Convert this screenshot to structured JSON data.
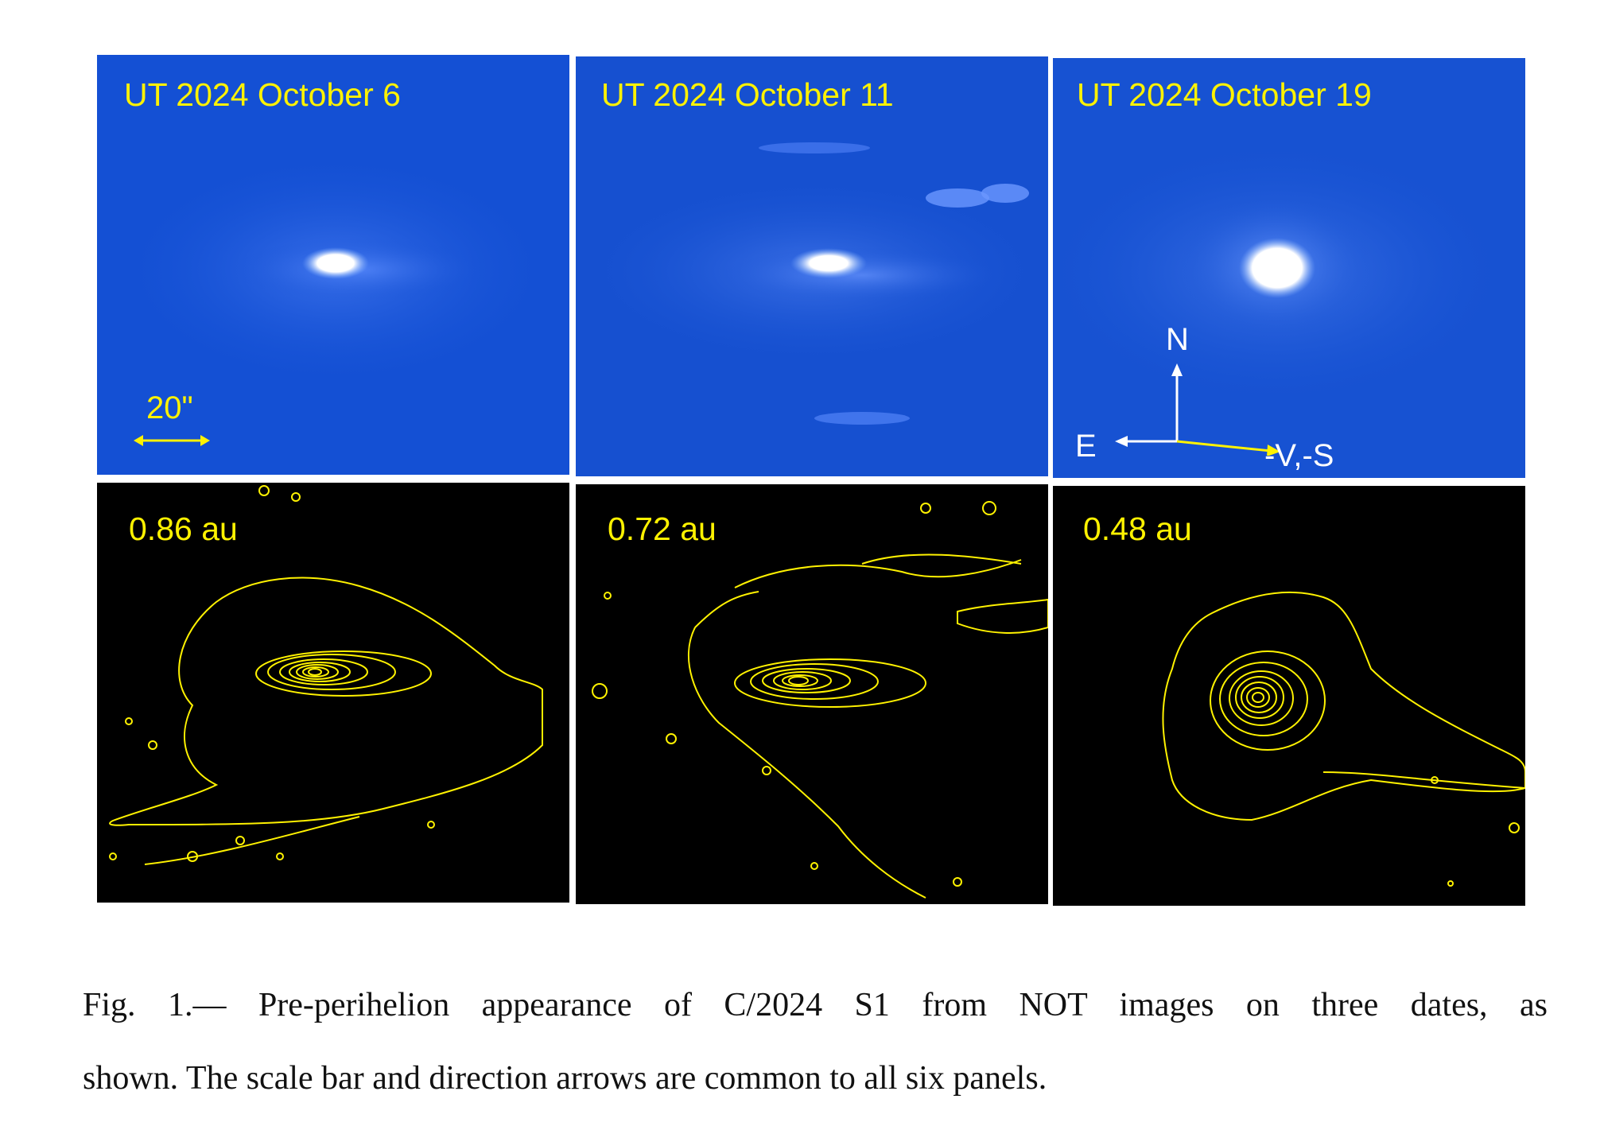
{
  "figure": {
    "top_row": [
      {
        "label": "UT 2024 October 6",
        "color": "#1450d4"
      },
      {
        "label": "UT 2024 October 11",
        "color": "#1450d4"
      },
      {
        "label": "UT 2024 October 19",
        "color": "#1450d4"
      }
    ],
    "bottom_row": [
      {
        "label": "0.86 au",
        "contour_color": "#fff200"
      },
      {
        "label": "0.72 au",
        "contour_color": "#fff200"
      },
      {
        "label": "0.48 au",
        "contour_color": "#fff200"
      }
    ],
    "scale_bar_label": "20\"",
    "compass": {
      "north": "N",
      "east": "E",
      "vector": "-V,-S"
    }
  },
  "caption": {
    "line1": "Fig.  1.— Pre-perihelion appearance of C/2024 S1 from NOT images on three dates, as",
    "line2": "shown. The scale bar and direction arrows are common to all six panels."
  }
}
